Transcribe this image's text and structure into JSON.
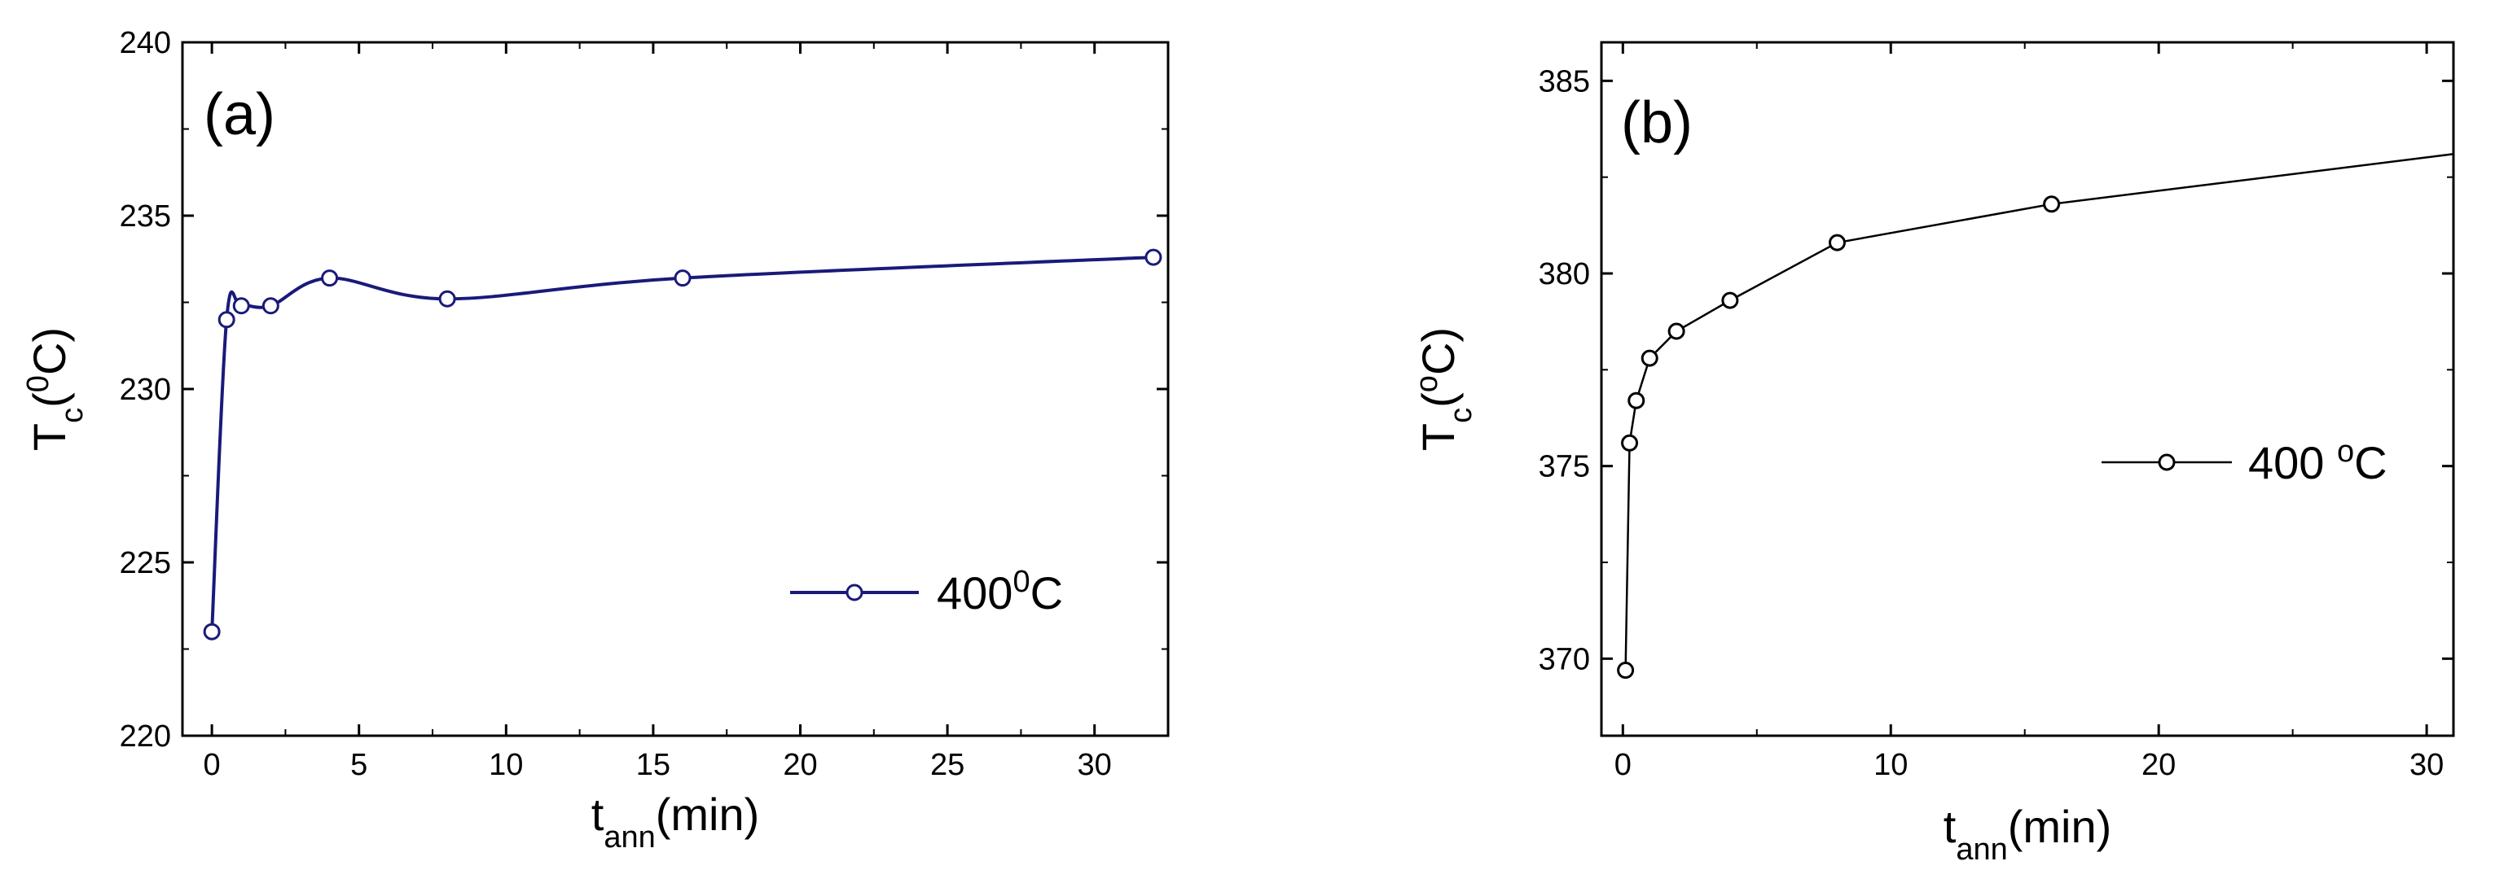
{
  "chart_data": [
    {
      "type": "line",
      "panel_label": "(a)",
      "xlabel": {
        "main": "t",
        "sub": "ann",
        "tail": "(min)"
      },
      "ylabel": {
        "main": "T",
        "sub": "c",
        "tail_pre": "(",
        "sup": "0",
        "tail": "C)"
      },
      "xlim": [
        -1,
        32.5
      ],
      "ylim": [
        220,
        240
      ],
      "xticks": [
        0,
        5,
        10,
        15,
        20,
        25,
        30
      ],
      "yticks": [
        220,
        225,
        230,
        235,
        240
      ],
      "smooth": true,
      "color": "#1a1a7a",
      "series": [
        {
          "name": "400⁰C",
          "legend": {
            "pre": "400",
            "sup": "0",
            "post": "C"
          },
          "x": [
            0,
            0.5,
            1,
            2,
            4,
            8,
            16,
            32
          ],
          "y": [
            223.0,
            232.0,
            232.4,
            232.4,
            233.2,
            232.6,
            233.2,
            233.8
          ]
        }
      ],
      "legend_position": "right"
    },
    {
      "type": "line",
      "panel_label": "(b)",
      "xlabel": {
        "main": "t",
        "sub": "ann",
        "tail": "(min)"
      },
      "ylabel": {
        "main": "T",
        "sub": "c",
        "tail_pre": "(",
        "sup": "o",
        "tail": "C)"
      },
      "xlim": [
        -0.8,
        31
      ],
      "ylim": [
        368,
        386
      ],
      "xticks": [
        0,
        10,
        20,
        30
      ],
      "yticks": [
        370,
        375,
        380,
        385
      ],
      "smooth": false,
      "color": "#000000",
      "extend_to": [
        31,
        383.1
      ],
      "series": [
        {
          "name": "400 °C",
          "legend": {
            "pre": "400 ",
            "sup": "o",
            "post": "C"
          },
          "x": [
            0.1,
            0.25,
            0.5,
            1,
            2,
            4,
            8,
            16
          ],
          "y": [
            369.7,
            375.6,
            376.7,
            377.8,
            378.5,
            379.3,
            380.8,
            381.8
          ]
        }
      ],
      "legend_position": "right"
    }
  ]
}
